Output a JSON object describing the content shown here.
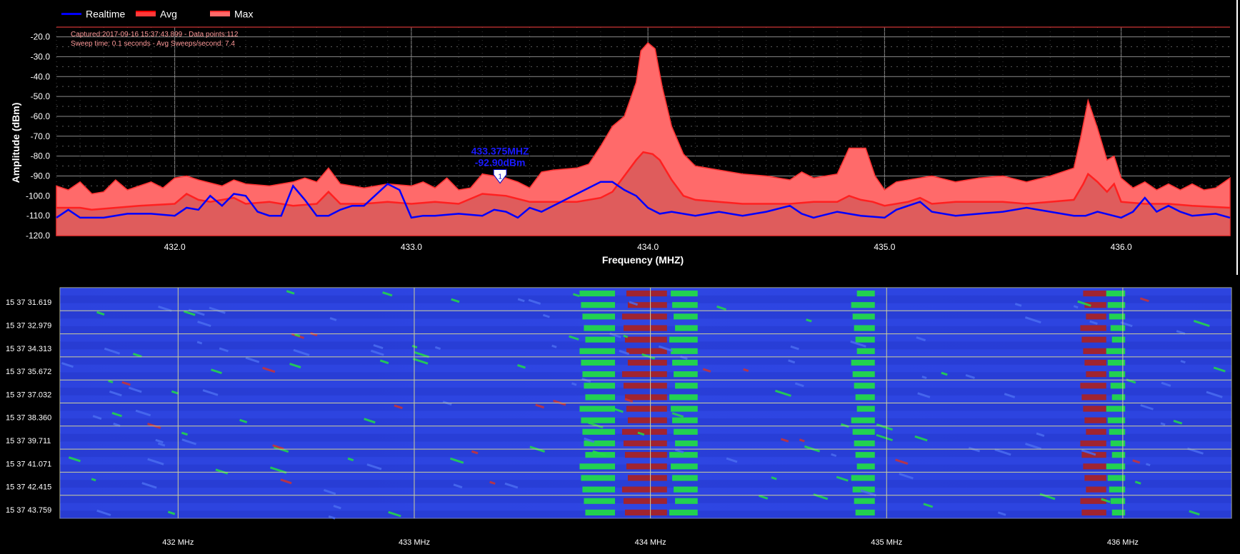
{
  "legend": [
    {
      "label": "Realtime",
      "color": "#0000ff",
      "style": "line"
    },
    {
      "label": "Avg",
      "color": "#ff2a2a",
      "style": "band"
    },
    {
      "label": "Max",
      "color": "#ff6a6a",
      "style": "band"
    }
  ],
  "info": {
    "line1": "Captured:2017-09-16 15:37:43.899 - Data points:112",
    "line2": "Sweep time: 0.1 seconds - Avg Sweeps/second: 7.4"
  },
  "marker": {
    "freq_label": "433.375MHZ",
    "amp_label": "-92.90dBm",
    "index": "1",
    "x": 433.375,
    "y": -92.9
  },
  "chart_data": [
    {
      "type": "area",
      "xlabel": "Frequency (MHZ)",
      "ylabel": "Amplitude (dBm)",
      "xlim": [
        431.5,
        436.46
      ],
      "ylim": [
        -120,
        -18
      ],
      "yticks": [
        -20,
        -30,
        -40,
        -50,
        -60,
        -70,
        -80,
        -90,
        -100,
        -110,
        -120
      ],
      "xticks": [
        432.0,
        433.0,
        434.0,
        435.0,
        436.0
      ],
      "xtick_labels": [
        "432.0",
        "433.0",
        "434.0",
        "435.0",
        "436.0"
      ],
      "grid": true,
      "colors": {
        "max": "#ff6a6a",
        "avg": "#ff2020",
        "realtime": "#0000ff",
        "grid": "#8a8a8a",
        "background": "#000000"
      },
      "series": [
        {
          "name": "Max",
          "points": [
            [
              431.5,
              -95
            ],
            [
              431.55,
              -97
            ],
            [
              431.6,
              -93
            ],
            [
              431.65,
              -99
            ],
            [
              431.7,
              -98
            ],
            [
              431.75,
              -92
            ],
            [
              431.8,
              -97
            ],
            [
              431.9,
              -93
            ],
            [
              431.95,
              -96
            ],
            [
              432.0,
              -91
            ],
            [
              432.05,
              -90
            ],
            [
              432.1,
              -92
            ],
            [
              432.2,
              -95
            ],
            [
              432.25,
              -92
            ],
            [
              432.3,
              -94
            ],
            [
              432.4,
              -95
            ],
            [
              432.5,
              -93
            ],
            [
              432.55,
              -91
            ],
            [
              432.6,
              -93
            ],
            [
              432.65,
              -86
            ],
            [
              432.7,
              -94
            ],
            [
              432.8,
              -96
            ],
            [
              432.9,
              -94
            ],
            [
              433.0,
              -95
            ],
            [
              433.05,
              -93
            ],
            [
              433.1,
              -96
            ],
            [
              433.15,
              -91
            ],
            [
              433.2,
              -97
            ],
            [
              433.25,
              -96
            ],
            [
              433.3,
              -89
            ],
            [
              433.4,
              -91
            ],
            [
              433.45,
              -93
            ],
            [
              433.5,
              -96
            ],
            [
              433.55,
              -88
            ],
            [
              433.6,
              -87
            ],
            [
              433.7,
              -86
            ],
            [
              433.75,
              -84
            ],
            [
              433.8,
              -75
            ],
            [
              433.85,
              -65
            ],
            [
              433.9,
              -60
            ],
            [
              433.95,
              -43
            ],
            [
              433.97,
              -27
            ],
            [
              434.0,
              -23
            ],
            [
              434.03,
              -26
            ],
            [
              434.06,
              -45
            ],
            [
              434.1,
              -65
            ],
            [
              434.15,
              -79
            ],
            [
              434.2,
              -85
            ],
            [
              434.3,
              -87
            ],
            [
              434.4,
              -89
            ],
            [
              434.5,
              -90
            ],
            [
              434.6,
              -92
            ],
            [
              434.65,
              -88
            ],
            [
              434.7,
              -91
            ],
            [
              434.8,
              -89
            ],
            [
              434.85,
              -76
            ],
            [
              434.92,
              -76
            ],
            [
              434.96,
              -90
            ],
            [
              435.0,
              -97
            ],
            [
              435.05,
              -93
            ],
            [
              435.1,
              -92
            ],
            [
              435.2,
              -90
            ],
            [
              435.3,
              -93
            ],
            [
              435.4,
              -91
            ],
            [
              435.5,
              -90
            ],
            [
              435.6,
              -93
            ],
            [
              435.7,
              -90
            ],
            [
              435.8,
              -86
            ],
            [
              435.83,
              -70
            ],
            [
              435.86,
              -52
            ],
            [
              435.9,
              -66
            ],
            [
              435.94,
              -82
            ],
            [
              435.97,
              -80
            ],
            [
              436.0,
              -91
            ],
            [
              436.05,
              -96
            ],
            [
              436.1,
              -93
            ],
            [
              436.15,
              -97
            ],
            [
              436.2,
              -94
            ],
            [
              436.25,
              -97
            ],
            [
              436.3,
              -94
            ],
            [
              436.35,
              -97
            ],
            [
              436.4,
              -96
            ],
            [
              436.46,
              -91
            ]
          ]
        },
        {
          "name": "Avg",
          "points": [
            [
              431.5,
              -106
            ],
            [
              431.6,
              -106
            ],
            [
              431.65,
              -107
            ],
            [
              431.75,
              -106
            ],
            [
              431.85,
              -105
            ],
            [
              432.0,
              -104
            ],
            [
              432.05,
              -99
            ],
            [
              432.1,
              -102
            ],
            [
              432.15,
              -103
            ],
            [
              432.25,
              -101
            ],
            [
              432.3,
              -104
            ],
            [
              432.4,
              -103
            ],
            [
              432.5,
              -105
            ],
            [
              432.6,
              -104
            ],
            [
              432.65,
              -98
            ],
            [
              432.7,
              -104
            ],
            [
              432.8,
              -104
            ],
            [
              432.9,
              -103
            ],
            [
              433.0,
              -104
            ],
            [
              433.1,
              -103
            ],
            [
              433.2,
              -104
            ],
            [
              433.3,
              -99
            ],
            [
              433.4,
              -100
            ],
            [
              433.5,
              -103
            ],
            [
              433.6,
              -103
            ],
            [
              433.7,
              -103
            ],
            [
              433.8,
              -101
            ],
            [
              433.85,
              -98
            ],
            [
              433.9,
              -90
            ],
            [
              433.95,
              -82
            ],
            [
              433.98,
              -78
            ],
            [
              434.02,
              -79
            ],
            [
              434.05,
              -82
            ],
            [
              434.1,
              -92
            ],
            [
              434.15,
              -100
            ],
            [
              434.2,
              -102
            ],
            [
              434.3,
              -103
            ],
            [
              434.4,
              -104
            ],
            [
              434.5,
              -104
            ],
            [
              434.6,
              -104
            ],
            [
              434.7,
              -103
            ],
            [
              434.8,
              -103
            ],
            [
              434.85,
              -100
            ],
            [
              434.9,
              -102
            ],
            [
              434.95,
              -103
            ],
            [
              435.0,
              -105
            ],
            [
              435.1,
              -103
            ],
            [
              435.15,
              -101
            ],
            [
              435.2,
              -104
            ],
            [
              435.3,
              -103
            ],
            [
              435.4,
              -103
            ],
            [
              435.5,
              -103
            ],
            [
              435.6,
              -104
            ],
            [
              435.7,
              -103
            ],
            [
              435.8,
              -102
            ],
            [
              435.84,
              -94
            ],
            [
              435.86,
              -89
            ],
            [
              435.9,
              -93
            ],
            [
              435.94,
              -98
            ],
            [
              435.97,
              -94
            ],
            [
              436.0,
              -103
            ],
            [
              436.1,
              -104
            ],
            [
              436.2,
              -104
            ],
            [
              436.3,
              -105
            ],
            [
              436.46,
              -106
            ]
          ]
        },
        {
          "name": "Realtime",
          "points": [
            [
              431.5,
              -111
            ],
            [
              431.55,
              -107
            ],
            [
              431.6,
              -111
            ],
            [
              431.7,
              -111
            ],
            [
              431.8,
              -109
            ],
            [
              431.9,
              -109
            ],
            [
              432.0,
              -110
            ],
            [
              432.05,
              -106
            ],
            [
              432.1,
              -107
            ],
            [
              432.15,
              -100
            ],
            [
              432.2,
              -105
            ],
            [
              432.25,
              -99
            ],
            [
              432.3,
              -100
            ],
            [
              432.35,
              -108
            ],
            [
              432.4,
              -110
            ],
            [
              432.45,
              -110
            ],
            [
              432.5,
              -95
            ],
            [
              432.55,
              -102
            ],
            [
              432.6,
              -110
            ],
            [
              432.65,
              -110
            ],
            [
              432.7,
              -107
            ],
            [
              432.75,
              -105
            ],
            [
              432.8,
              -105
            ],
            [
              432.9,
              -94
            ],
            [
              432.95,
              -97
            ],
            [
              433.0,
              -111
            ],
            [
              433.05,
              -110
            ],
            [
              433.1,
              -110
            ],
            [
              433.2,
              -109
            ],
            [
              433.3,
              -110
            ],
            [
              433.35,
              -107
            ],
            [
              433.4,
              -108
            ],
            [
              433.45,
              -111
            ],
            [
              433.5,
              -106
            ],
            [
              433.55,
              -108
            ],
            [
              433.6,
              -105
            ],
            [
              433.7,
              -99
            ],
            [
              433.8,
              -93
            ],
            [
              433.85,
              -93
            ],
            [
              433.9,
              -97
            ],
            [
              433.95,
              -100
            ],
            [
              434.0,
              -106
            ],
            [
              434.05,
              -109
            ],
            [
              434.1,
              -108
            ],
            [
              434.2,
              -110
            ],
            [
              434.3,
              -108
            ],
            [
              434.4,
              -110
            ],
            [
              434.5,
              -108
            ],
            [
              434.6,
              -105
            ],
            [
              434.65,
              -109
            ],
            [
              434.7,
              -111
            ],
            [
              434.8,
              -108
            ],
            [
              434.9,
              -110
            ],
            [
              435.0,
              -111
            ],
            [
              435.05,
              -107
            ],
            [
              435.1,
              -105
            ],
            [
              435.15,
              -103
            ],
            [
              435.2,
              -108
            ],
            [
              435.3,
              -110
            ],
            [
              435.4,
              -109
            ],
            [
              435.5,
              -108
            ],
            [
              435.6,
              -106
            ],
            [
              435.7,
              -108
            ],
            [
              435.8,
              -110
            ],
            [
              435.85,
              -110
            ],
            [
              435.9,
              -108
            ],
            [
              436.0,
              -111
            ],
            [
              436.05,
              -108
            ],
            [
              436.1,
              -101
            ],
            [
              436.15,
              -108
            ],
            [
              436.2,
              -105
            ],
            [
              436.25,
              -108
            ],
            [
              436.3,
              -110
            ],
            [
              436.4,
              -109
            ],
            [
              436.46,
              -111
            ]
          ]
        }
      ]
    },
    {
      "type": "heatmap",
      "xlim": [
        431.5,
        436.46
      ],
      "xticks": [
        432,
        433,
        434,
        435,
        436
      ],
      "xtick_labels": [
        "432 MHz",
        "433 MHz",
        "434 MHz",
        "435 MHz",
        "436 MHz"
      ],
      "row_labels": [
        "15 37 31.619",
        "15 37 32.979",
        "15 37 34.313",
        "15 37 35.672",
        "15 37 37.032",
        "15 37 38.360",
        "15 37 39.711",
        "15 37 41.071",
        "15 37 42.415",
        "15 37 43.759"
      ],
      "colors": {
        "background": "#2233dd",
        "low": "#3344e6",
        "mid": "#22dd44",
        "high": "#aa2222",
        "grid": "#cfcf9a"
      },
      "hot_bands": [
        {
          "from": 433.7,
          "to": 433.85,
          "level": "mid"
        },
        {
          "from": 433.88,
          "to": 434.07,
          "level": "high"
        },
        {
          "from": 434.08,
          "to": 434.2,
          "level": "mid"
        },
        {
          "from": 434.85,
          "to": 434.95,
          "level": "mid"
        },
        {
          "from": 435.82,
          "to": 435.93,
          "level": "high"
        },
        {
          "from": 435.93,
          "to": 436.01,
          "level": "mid"
        }
      ]
    }
  ]
}
